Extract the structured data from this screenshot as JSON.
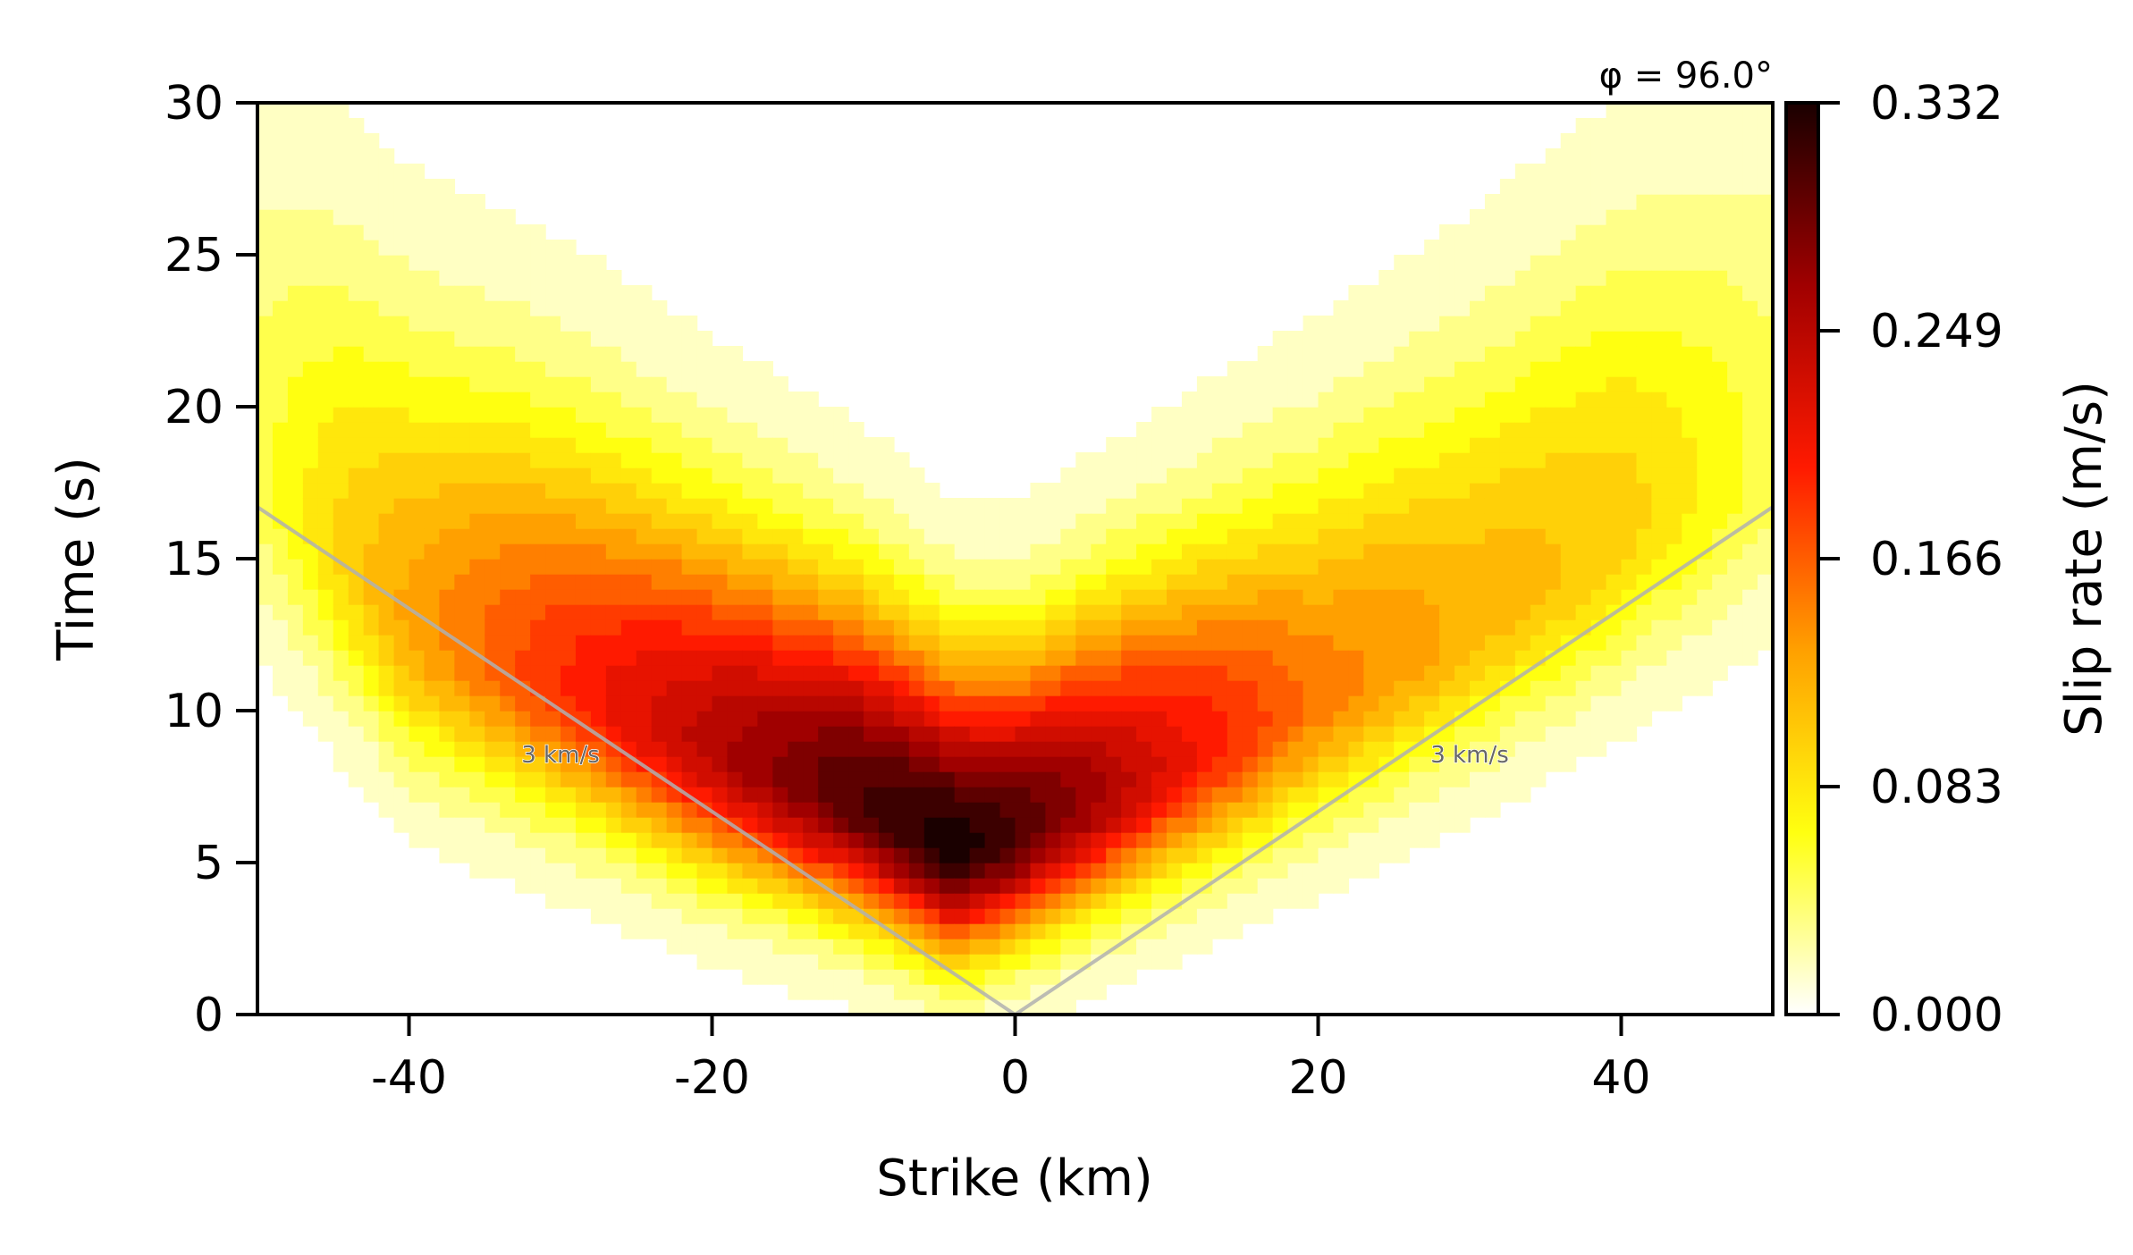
{
  "chart_data": {
    "type": "heatmap",
    "title": "",
    "annotation": "φ = 96.0°",
    "xlabel": "Strike (km)",
    "ylabel": "Time (s)",
    "xlim": [
      -50,
      50
    ],
    "ylim": [
      0,
      30
    ],
    "x_ticks": [
      "-40",
      "-20",
      "0",
      "20",
      "40"
    ],
    "y_ticks": [
      "0",
      "5",
      "10",
      "15",
      "20",
      "25",
      "30"
    ],
    "colorbar": {
      "label": "Slip rate (m/s)",
      "colormap": "hot_r",
      "range": [
        0,
        0.332
      ],
      "ticks": [
        "0.000",
        "0.083",
        "0.166",
        "0.249",
        "0.332"
      ]
    },
    "reference_lines": [
      {
        "label": "3 km/s",
        "points": [
          [
            0,
            0
          ],
          [
            -50,
            16.7
          ]
        ]
      },
      {
        "label": "3 km/s",
        "points": [
          [
            0,
            0
          ],
          [
            50,
            16.7
          ]
        ]
      }
    ],
    "field_summary": {
      "peak": {
        "strike_km": -4,
        "time_s": 5.5,
        "slip_rate_m_s": 0.332
      },
      "front_centre": [
        [
          -50,
          18
        ],
        [
          -40,
          13
        ],
        [
          -30,
          11
        ],
        [
          -20,
          8.8
        ],
        [
          -10,
          7
        ],
        [
          -4,
          5.5
        ],
        [
          0,
          6
        ],
        [
          10,
          8.2
        ],
        [
          20,
          10.5
        ],
        [
          30,
          13
        ],
        [
          40,
          16
        ],
        [
          50,
          18.5
        ]
      ],
      "peak_amplitude_by_strike": [
        [
          -50,
          0.05
        ],
        [
          -40,
          0.13
        ],
        [
          -30,
          0.19
        ],
        [
          -20,
          0.25
        ],
        [
          -10,
          0.31
        ],
        [
          -4,
          0.332
        ],
        [
          0,
          0.31
        ],
        [
          10,
          0.22
        ],
        [
          20,
          0.15
        ],
        [
          30,
          0.12
        ],
        [
          40,
          0.1
        ],
        [
          50,
          0.05
        ]
      ]
    }
  }
}
